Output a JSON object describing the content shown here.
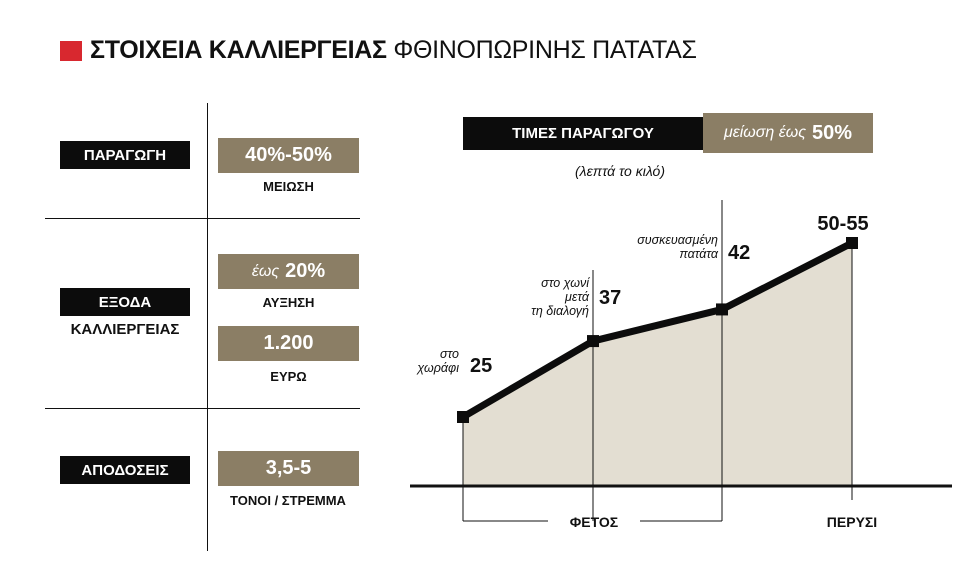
{
  "title": {
    "bold": "ΣΤΟΙΧΕΙΑ ΚΑΛΛΙΕΡΓΕΙΑΣ",
    "normal": "ΦΘΙΝΟΠΩΡΙΝΗΣ ΠΑΤΑΤΑΣ"
  },
  "colors": {
    "accent_red": "#d8282f",
    "tan": "#8b7e65",
    "fill": "#e3ded2",
    "black": "#0c0c0c"
  },
  "table": {
    "production": {
      "label": "ΠΑΡΑΓΩΓΗ",
      "value": "40%-50%",
      "caption": "ΜΕΙΩΣΗ"
    },
    "costs": {
      "label_1": "ΕΞΟΔΑ",
      "label_2": "ΚΑΛΛΙΕΡΓΕΙΑΣ",
      "value_1_prefix": "έως",
      "value_1": "20%",
      "caption_1": "ΑΥΞΗΣΗ",
      "value_2": "1.200",
      "caption_2": "ΕΥΡΩ"
    },
    "yields": {
      "label": "ΑΠΟΔΟΣΕΙΣ",
      "value": "3,5-5",
      "caption": "ΤΟΝΟΙ / ΣΤΡΕΜΜΑ"
    }
  },
  "chart_header": {
    "label": "ΤΙΜΕΣ ΠΑΡΑΓΩΓΟΥ",
    "note_prefix": "μείωση έως",
    "note_value": "50%",
    "unit": "(λεπτά το κιλό)"
  },
  "chart_data": {
    "type": "area",
    "ylabel": "(λεπτά το κιλό)",
    "points": [
      {
        "value": 25,
        "label": "25",
        "note": [
          "στο",
          "χωράφι"
        ]
      },
      {
        "value": 37,
        "label": "37",
        "note": [
          "στο χωνί",
          "μετά",
          "τη διαλογή"
        ]
      },
      {
        "value": 42,
        "label": "42",
        "note": [
          "συσκευασμένη",
          "πατάτα"
        ]
      },
      {
        "value": 52.5,
        "label": "50-55",
        "note": []
      }
    ],
    "groups": [
      {
        "label": "ΦΕΤΟΣ",
        "points": [
          0,
          1,
          2
        ]
      },
      {
        "label": "ΠΕΡΥΣΙ",
        "points": [
          3
        ]
      }
    ]
  }
}
